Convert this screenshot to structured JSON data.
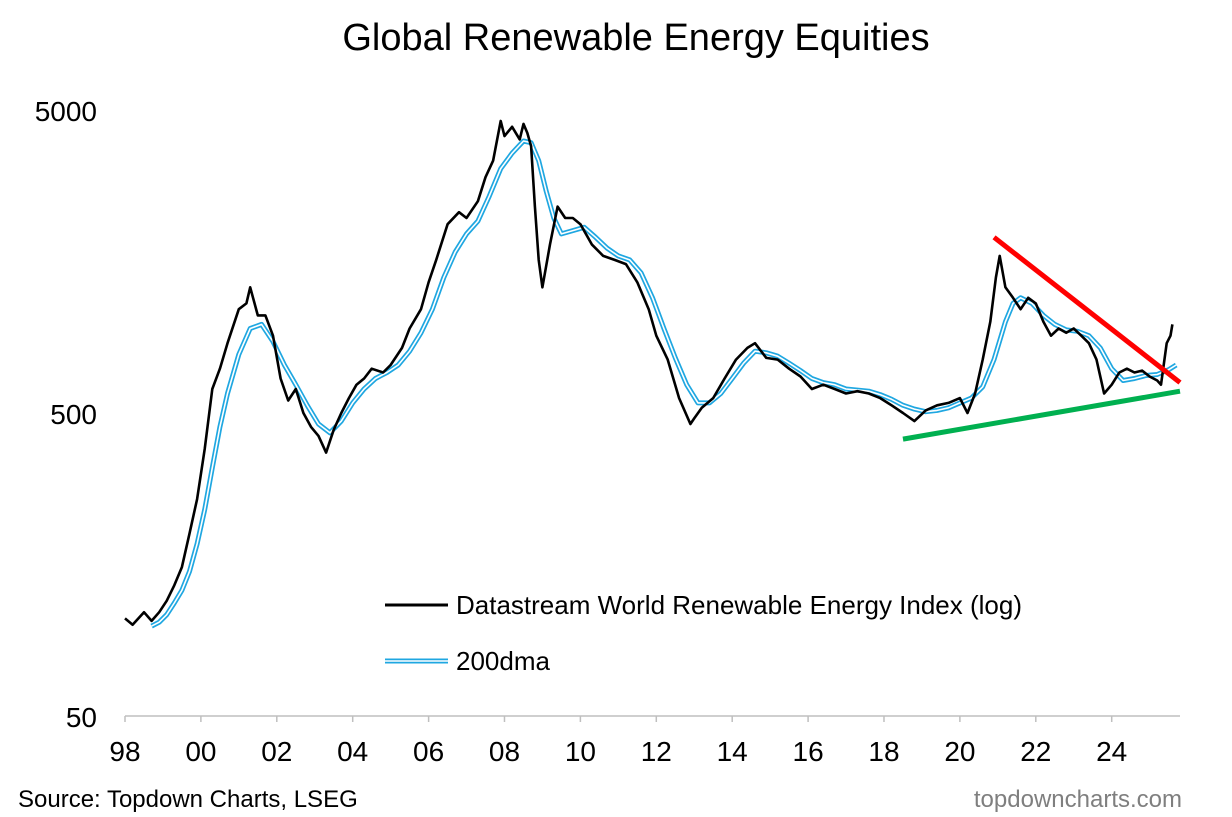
{
  "chart_data": {
    "type": "line",
    "title": "Global Renewable Energy Equities",
    "scale": "log",
    "ylim": [
      50,
      5000
    ],
    "y_ticks": [
      "50",
      "500",
      "5000"
    ],
    "x_range": [
      1998,
      2025.8
    ],
    "x_ticks": [
      "98",
      "00",
      "02",
      "04",
      "06",
      "08",
      "10",
      "12",
      "14",
      "16",
      "18",
      "20",
      "22",
      "24"
    ],
    "series": [
      {
        "name": "Datastream World Renewable Energy Index (log)",
        "color": "#000000",
        "points": [
          [
            1998.0,
            105
          ],
          [
            1998.2,
            100
          ],
          [
            1998.5,
            110
          ],
          [
            1998.7,
            103
          ],
          [
            1998.9,
            110
          ],
          [
            1999.1,
            120
          ],
          [
            1999.3,
            135
          ],
          [
            1999.5,
            155
          ],
          [
            1999.7,
            200
          ],
          [
            1999.9,
            260
          ],
          [
            2000.1,
            380
          ],
          [
            2000.3,
            600
          ],
          [
            2000.5,
            700
          ],
          [
            2000.7,
            850
          ],
          [
            2001.0,
            1100
          ],
          [
            2001.2,
            1150
          ],
          [
            2001.3,
            1300
          ],
          [
            2001.5,
            1050
          ],
          [
            2001.7,
            1050
          ],
          [
            2001.9,
            900
          ],
          [
            2002.1,
            650
          ],
          [
            2002.3,
            550
          ],
          [
            2002.5,
            600
          ],
          [
            2002.7,
            500
          ],
          [
            2002.9,
            450
          ],
          [
            2003.1,
            420
          ],
          [
            2003.3,
            370
          ],
          [
            2003.5,
            440
          ],
          [
            2003.7,
            500
          ],
          [
            2003.9,
            560
          ],
          [
            2004.1,
            620
          ],
          [
            2004.3,
            650
          ],
          [
            2004.5,
            700
          ],
          [
            2004.8,
            680
          ],
          [
            2005.0,
            720
          ],
          [
            2005.3,
            820
          ],
          [
            2005.5,
            950
          ],
          [
            2005.8,
            1100
          ],
          [
            2006.0,
            1350
          ],
          [
            2006.2,
            1600
          ],
          [
            2006.5,
            2100
          ],
          [
            2006.8,
            2300
          ],
          [
            2007.0,
            2200
          ],
          [
            2007.3,
            2500
          ],
          [
            2007.5,
            3000
          ],
          [
            2007.7,
            3400
          ],
          [
            2007.9,
            4600
          ],
          [
            2008.0,
            4100
          ],
          [
            2008.2,
            4400
          ],
          [
            2008.4,
            4000
          ],
          [
            2008.5,
            4500
          ],
          [
            2008.6,
            4200
          ],
          [
            2008.7,
            3800
          ],
          [
            2008.8,
            2400
          ],
          [
            2008.9,
            1600
          ],
          [
            2009.0,
            1300
          ],
          [
            2009.2,
            1800
          ],
          [
            2009.4,
            2400
          ],
          [
            2009.6,
            2200
          ],
          [
            2009.8,
            2200
          ],
          [
            2010.0,
            2100
          ],
          [
            2010.3,
            1800
          ],
          [
            2010.6,
            1650
          ],
          [
            2010.9,
            1600
          ],
          [
            2011.2,
            1550
          ],
          [
            2011.5,
            1350
          ],
          [
            2011.8,
            1100
          ],
          [
            2012.0,
            900
          ],
          [
            2012.3,
            750
          ],
          [
            2012.6,
            560
          ],
          [
            2012.9,
            460
          ],
          [
            2013.0,
            480
          ],
          [
            2013.2,
            520
          ],
          [
            2013.5,
            560
          ],
          [
            2013.8,
            650
          ],
          [
            2014.1,
            750
          ],
          [
            2014.4,
            820
          ],
          [
            2014.6,
            850
          ],
          [
            2014.9,
            760
          ],
          [
            2015.2,
            750
          ],
          [
            2015.5,
            700
          ],
          [
            2015.8,
            660
          ],
          [
            2016.1,
            600
          ],
          [
            2016.4,
            620
          ],
          [
            2016.7,
            600
          ],
          [
            2017.0,
            580
          ],
          [
            2017.3,
            590
          ],
          [
            2017.6,
            580
          ],
          [
            2017.9,
            560
          ],
          [
            2018.2,
            530
          ],
          [
            2018.5,
            500
          ],
          [
            2018.8,
            470
          ],
          [
            2019.1,
            510
          ],
          [
            2019.4,
            530
          ],
          [
            2019.7,
            540
          ],
          [
            2020.0,
            560
          ],
          [
            2020.2,
            500
          ],
          [
            2020.4,
            580
          ],
          [
            2020.6,
            750
          ],
          [
            2020.8,
            1000
          ],
          [
            2020.95,
            1400
          ],
          [
            2021.05,
            1650
          ],
          [
            2021.2,
            1300
          ],
          [
            2021.4,
            1200
          ],
          [
            2021.6,
            1100
          ],
          [
            2021.8,
            1200
          ],
          [
            2022.0,
            1150
          ],
          [
            2022.2,
            1000
          ],
          [
            2022.4,
            900
          ],
          [
            2022.6,
            950
          ],
          [
            2022.8,
            920
          ],
          [
            2023.0,
            950
          ],
          [
            2023.2,
            900
          ],
          [
            2023.4,
            850
          ],
          [
            2023.6,
            750
          ],
          [
            2023.8,
            580
          ],
          [
            2024.0,
            620
          ],
          [
            2024.2,
            680
          ],
          [
            2024.4,
            700
          ],
          [
            2024.6,
            680
          ],
          [
            2024.8,
            690
          ],
          [
            2025.0,
            660
          ],
          [
            2025.2,
            640
          ],
          [
            2025.3,
            620
          ],
          [
            2025.45,
            850
          ],
          [
            2025.55,
            900
          ],
          [
            2025.6,
            980
          ]
        ]
      },
      {
        "name": "200dma",
        "color": "#1fa7e1",
        "points": [
          [
            1998.7,
            99
          ],
          [
            1998.9,
            102
          ],
          [
            1999.1,
            108
          ],
          [
            1999.3,
            118
          ],
          [
            1999.5,
            130
          ],
          [
            1999.7,
            150
          ],
          [
            1999.9,
            185
          ],
          [
            2000.1,
            240
          ],
          [
            2000.3,
            330
          ],
          [
            2000.5,
            450
          ],
          [
            2000.7,
            580
          ],
          [
            2001.0,
            780
          ],
          [
            2001.3,
            950
          ],
          [
            2001.6,
            980
          ],
          [
            2001.9,
            860
          ],
          [
            2002.2,
            720
          ],
          [
            2002.5,
            620
          ],
          [
            2002.8,
            530
          ],
          [
            2003.1,
            460
          ],
          [
            2003.4,
            430
          ],
          [
            2003.7,
            470
          ],
          [
            2004.0,
            540
          ],
          [
            2004.3,
            600
          ],
          [
            2004.6,
            650
          ],
          [
            2004.9,
            680
          ],
          [
            2005.2,
            720
          ],
          [
            2005.5,
            800
          ],
          [
            2005.8,
            920
          ],
          [
            2006.1,
            1100
          ],
          [
            2006.4,
            1400
          ],
          [
            2006.7,
            1700
          ],
          [
            2007.0,
            1950
          ],
          [
            2007.3,
            2150
          ],
          [
            2007.6,
            2600
          ],
          [
            2007.9,
            3200
          ],
          [
            2008.2,
            3600
          ],
          [
            2008.5,
            3950
          ],
          [
            2008.7,
            3900
          ],
          [
            2008.9,
            3400
          ],
          [
            2009.1,
            2700
          ],
          [
            2009.3,
            2200
          ],
          [
            2009.5,
            1950
          ],
          [
            2009.8,
            2000
          ],
          [
            2010.1,
            2050
          ],
          [
            2010.4,
            1900
          ],
          [
            2010.7,
            1750
          ],
          [
            2011.0,
            1650
          ],
          [
            2011.3,
            1600
          ],
          [
            2011.6,
            1450
          ],
          [
            2011.9,
            1200
          ],
          [
            2012.2,
            950
          ],
          [
            2012.5,
            760
          ],
          [
            2012.8,
            620
          ],
          [
            2013.1,
            540
          ],
          [
            2013.4,
            540
          ],
          [
            2013.7,
            580
          ],
          [
            2014.0,
            650
          ],
          [
            2014.3,
            730
          ],
          [
            2014.6,
            800
          ],
          [
            2014.9,
            790
          ],
          [
            2015.2,
            770
          ],
          [
            2015.5,
            730
          ],
          [
            2015.8,
            690
          ],
          [
            2016.1,
            650
          ],
          [
            2016.4,
            630
          ],
          [
            2016.7,
            620
          ],
          [
            2017.0,
            600
          ],
          [
            2017.3,
            595
          ],
          [
            2017.6,
            590
          ],
          [
            2017.9,
            575
          ],
          [
            2018.2,
            555
          ],
          [
            2018.5,
            530
          ],
          [
            2018.8,
            515
          ],
          [
            2019.1,
            505
          ],
          [
            2019.4,
            510
          ],
          [
            2019.7,
            520
          ],
          [
            2020.0,
            540
          ],
          [
            2020.3,
            560
          ],
          [
            2020.6,
            610
          ],
          [
            2020.9,
            750
          ],
          [
            2021.2,
            1000
          ],
          [
            2021.4,
            1150
          ],
          [
            2021.6,
            1200
          ],
          [
            2021.9,
            1150
          ],
          [
            2022.2,
            1050
          ],
          [
            2022.5,
            980
          ],
          [
            2022.8,
            940
          ],
          [
            2023.1,
            930
          ],
          [
            2023.4,
            900
          ],
          [
            2023.7,
            820
          ],
          [
            2024.0,
            700
          ],
          [
            2024.3,
            640
          ],
          [
            2024.6,
            650
          ],
          [
            2024.9,
            665
          ],
          [
            2025.2,
            670
          ],
          [
            2025.5,
            695
          ],
          [
            2025.7,
            720
          ]
        ]
      }
    ],
    "annotations": [
      {
        "name": "resistance trendline",
        "color": "#ff0000",
        "from": [
          2020.9,
          1900
        ],
        "to": [
          2025.8,
          630
        ]
      },
      {
        "name": "support trendline",
        "color": "#00b050",
        "from": [
          2018.5,
          410
        ],
        "to": [
          2025.8,
          590
        ]
      }
    ],
    "legend_position": "bottom-right"
  },
  "footer": {
    "source": "Source: Topdown Charts, LSEG",
    "brand": "topdowncharts.com"
  }
}
